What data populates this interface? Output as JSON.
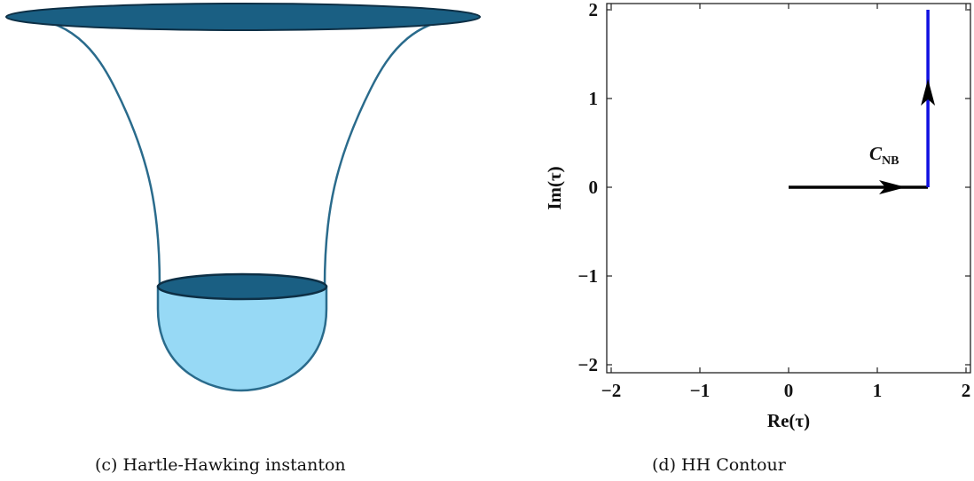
{
  "panels": {
    "left": {
      "caption": "(c)  Hartle-Hawking instanton",
      "colors": {
        "rim": "#1a5f83",
        "outline": "#2a6b8c",
        "cap": "#97d9f5"
      }
    },
    "right": {
      "caption": "(d)  HH Contour",
      "contour_label": {
        "main": "C",
        "sub": "NB"
      }
    }
  },
  "chart_data": {
    "type": "line",
    "title": "",
    "xlabel": "Re(τ)",
    "ylabel": "Im(τ)",
    "xlim": [
      -2.1,
      2.1
    ],
    "ylim": [
      -2.1,
      2.1
    ],
    "xticks": [
      -2,
      -1,
      0,
      1,
      2
    ],
    "yticks": [
      -2,
      -1,
      0,
      1,
      2
    ],
    "xtick_labels": [
      "−2",
      "−1",
      "0",
      "1",
      "2"
    ],
    "ytick_labels": [
      "−2",
      "−1",
      "0",
      "1",
      "2"
    ],
    "grid": false,
    "series": [
      {
        "color": "#000000",
        "points": [
          [
            0,
            0
          ],
          [
            1.5708,
            0
          ]
        ],
        "arrow_at": [
          1.2,
          0
        ]
      },
      {
        "color": "#1010e0",
        "points": [
          [
            1.5708,
            0
          ],
          [
            1.5708,
            2.0
          ]
        ],
        "arrow_at": [
          1.5708,
          1.1
        ]
      }
    ],
    "annotations": [
      {
        "text_key": "contour_label",
        "x": 1.1,
        "y": 0.37
      }
    ]
  }
}
